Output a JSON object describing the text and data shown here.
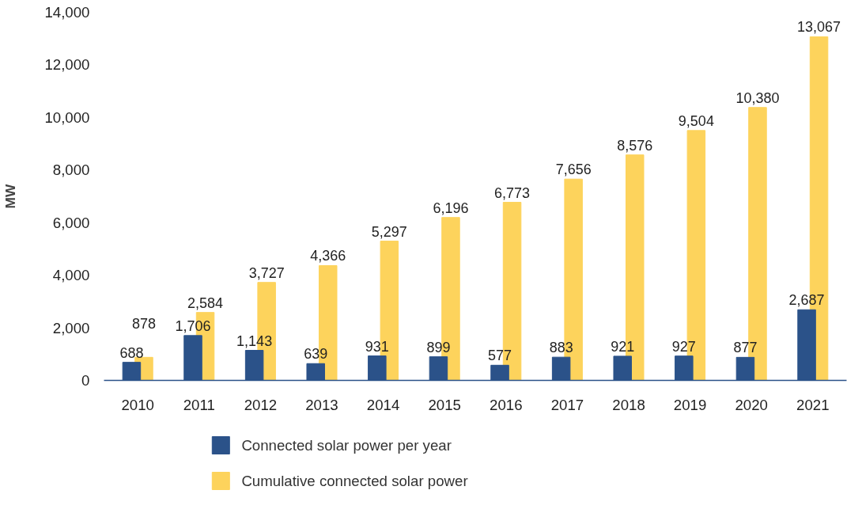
{
  "chart_data": {
    "type": "bar",
    "ylabel": "MW",
    "categories": [
      "2010",
      "2011",
      "2012",
      "2013",
      "2014",
      "2015",
      "2016",
      "2017",
      "2018",
      "2019",
      "2020",
      "2021"
    ],
    "series": [
      {
        "name": "Connected solar power per year",
        "color": "#2b5289",
        "values": [
          688,
          1706,
          1143,
          639,
          931,
          899,
          577,
          883,
          921,
          927,
          877,
          2687
        ],
        "value_labels": [
          "688",
          "1,706",
          "1,143",
          "639",
          "931",
          "899",
          "577",
          "883",
          "921",
          "927",
          "877",
          "2,687"
        ]
      },
      {
        "name": "Cumulative connected solar power",
        "color": "#fdd35c",
        "values": [
          878,
          2584,
          3727,
          4366,
          5297,
          6196,
          6773,
          7656,
          8576,
          9504,
          10380,
          13067
        ],
        "value_labels": [
          "878",
          "2,584",
          "3,727",
          "4,366",
          "5,297",
          "6,196",
          "6,773",
          "7,656",
          "8,576",
          "9,504",
          "10,380",
          "13,067"
        ]
      }
    ],
    "ylim": [
      0,
      14000
    ],
    "yticks": [
      {
        "value": 0,
        "label": "0"
      },
      {
        "value": 2000,
        "label": "2,000"
      },
      {
        "value": 4000,
        "label": "4,000"
      },
      {
        "value": 6000,
        "label": "6,000"
      },
      {
        "value": 8000,
        "label": "8,000"
      },
      {
        "value": 10000,
        "label": "10,000"
      },
      {
        "value": 12000,
        "label": "12,000"
      },
      {
        "value": 14000,
        "label": "14,000"
      }
    ],
    "legend": "bottom"
  }
}
